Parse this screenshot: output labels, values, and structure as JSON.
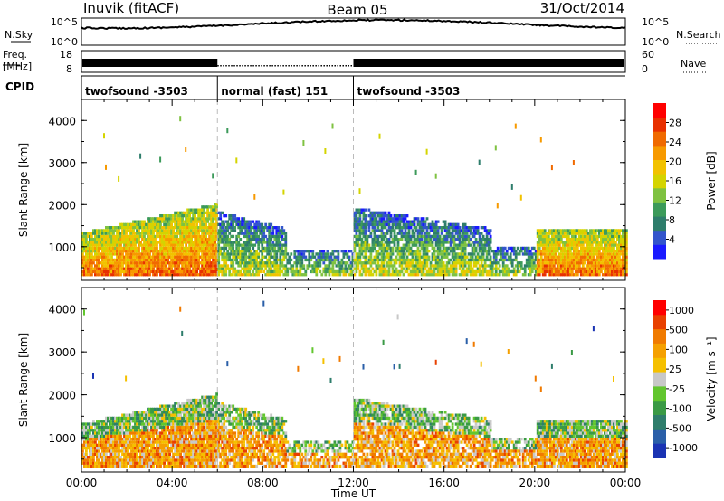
{
  "header": {
    "station": "Inuvik (fitACF)",
    "beam": "Beam 05",
    "date": "31/Oct/2014"
  },
  "strips": {
    "nsky_label": "N.Sky",
    "nsearch_label": "N.Search",
    "freq_label_1": "Freq.",
    "freq_label_2": "[MHz]",
    "nave_label": "Nave",
    "cpid_label": "CPID",
    "noise_ticks": [
      "10^5",
      "10^0"
    ],
    "noise_ticks_right": [
      "10^5",
      "10^0"
    ],
    "freq_ticks": [
      "18",
      "8"
    ],
    "nave_ticks": [
      "60",
      "0"
    ]
  },
  "cpid_segments": [
    {
      "label": "twofsound -3503",
      "start": 0,
      "end": 6
    },
    {
      "label": "normal (fast) 151",
      "start": 6,
      "end": 12
    },
    {
      "label": "twofsound -3503",
      "start": 12,
      "end": 24
    }
  ],
  "chart_data": [
    {
      "type": "heatmap",
      "title": "Power",
      "ylabel": "Slant Range [km]",
      "xlabel": "",
      "xlim": [
        0,
        24
      ],
      "ylim": [
        200,
        4500
      ],
      "yticks": [
        1000,
        2000,
        3000,
        4000
      ],
      "colorbar_label": "Power [dB]",
      "colorbar_ticks": [
        "4",
        "8",
        "12",
        "16",
        "20",
        "24",
        "28"
      ],
      "colorbar_colors": [
        "#1a1aff",
        "#3355cc",
        "#2e7d6b",
        "#3c9a5a",
        "#7fc241",
        "#d4d400",
        "#f2c200",
        "#f79a00",
        "#f06a00",
        "#e83000",
        "#ff0000"
      ]
    },
    {
      "type": "heatmap",
      "title": "Velocity",
      "ylabel": "Slant Range [km]",
      "xlabel": "Time UT",
      "xlim": [
        0,
        24
      ],
      "ylim": [
        200,
        4500
      ],
      "yticks": [
        1000,
        2000,
        3000,
        4000
      ],
      "xticks": [
        "00:00",
        "04:00",
        "08:00",
        "12:00",
        "16:00",
        "20:00",
        "00:00"
      ],
      "colorbar_label": "Velocity [m s⁻¹]",
      "colorbar_ticks": [
        "1000",
        "500",
        "100",
        "25",
        "-25",
        "-100",
        "-500",
        "-1000"
      ],
      "colorbar_colors": [
        "#1a33b3",
        "#2a5fa8",
        "#2e7d6b",
        "#3a9a45",
        "#62c62e",
        "#c8c8c8",
        "#f5c000",
        "#f5a000",
        "#f07a00",
        "#e84000",
        "#ff0000"
      ]
    }
  ]
}
